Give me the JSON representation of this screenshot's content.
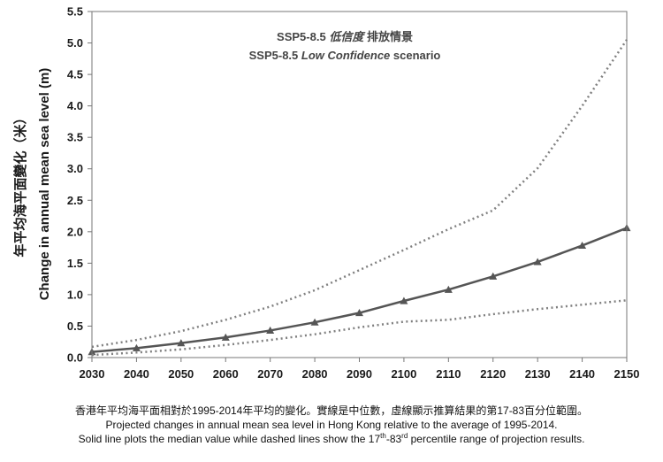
{
  "chart_data": {
    "type": "line",
    "x": [
      2030,
      2040,
      2050,
      2060,
      2070,
      2080,
      2090,
      2100,
      2110,
      2120,
      2130,
      2140,
      2150
    ],
    "series": [
      {
        "role": "median",
        "style": "solid-triangle",
        "color": "#555555",
        "values": [
          0.09,
          0.15,
          0.23,
          0.32,
          0.43,
          0.56,
          0.71,
          0.9,
          1.08,
          1.29,
          1.52,
          1.78,
          2.06
        ]
      },
      {
        "role": "upper",
        "style": "dotted",
        "color": "#808080",
        "values": [
          0.17,
          0.28,
          0.42,
          0.6,
          0.81,
          1.07,
          1.39,
          1.71,
          2.04,
          2.34,
          3.01,
          4.0,
          5.05
        ]
      },
      {
        "role": "lower",
        "style": "dotted",
        "color": "#808080",
        "values": [
          0.04,
          0.08,
          0.13,
          0.2,
          0.28,
          0.37,
          0.48,
          0.57,
          0.6,
          0.69,
          0.77,
          0.84,
          0.91
        ]
      }
    ],
    "ylabel_zh": "年平均海平面變化（米）",
    "ylabel_en": "Change in annual mean sea level (m)",
    "ylim": [
      0,
      5.5
    ],
    "yticks": [
      "0.0",
      "0.5",
      "1.0",
      "1.5",
      "2.0",
      "2.5",
      "3.0",
      "3.5",
      "4.0",
      "4.5",
      "5.0",
      "5.5"
    ],
    "xticks": [
      "2030",
      "2040",
      "2050",
      "2060",
      "2070",
      "2080",
      "2090",
      "2100",
      "2110",
      "2120",
      "2130",
      "2140",
      "2150"
    ],
    "grid": false,
    "annotation": {
      "zh_prefix": "SSP5-8.5 ",
      "zh_italic": "低信度",
      "zh_suffix": " 排放情景",
      "en_prefix": "SSP5-8.5 ",
      "en_italic": "Low Confidence",
      "en_suffix": " scenario"
    }
  },
  "caption": {
    "line1": "香港年平均海平面相對於1995-2014年平均的變化。實線是中位數，虛線顯示推算結果的第17-83百分位範圍。",
    "line2": "Projected changes in annual  mean sea level in Hong Kong relative to the average of 1995-2014.",
    "line3_a": "Solid line plots the median value while dashed lines show the 17",
    "line3_sup1": "th",
    "line3_b": "-83",
    "line3_sup2": "rd",
    "line3_c": " percentile range of projection results."
  }
}
